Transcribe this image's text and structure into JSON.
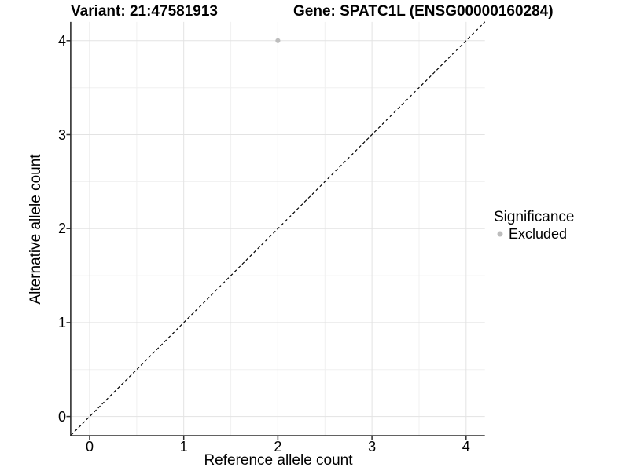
{
  "titles": {
    "variant": "Variant: 21:47581913",
    "gene": "Gene: SPATC1L (ENSG00000160284)"
  },
  "chart_data": {
    "type": "scatter",
    "title_left": "Variant: 21:47581913",
    "title_right": "Gene: SPATC1L (ENSG00000160284)",
    "xlabel": "Reference allele count",
    "ylabel": "Alternative allele count",
    "x_ticks": [
      "0",
      "1",
      "2",
      "3",
      "4"
    ],
    "y_ticks": [
      "0",
      "1",
      "2",
      "3",
      "4"
    ],
    "xlim": [
      -0.2,
      4.2
    ],
    "ylim": [
      -0.2,
      4.2
    ],
    "grid": "major and minor gridlines on, white background",
    "reference_line": {
      "type": "identity y=x",
      "style": "dashed",
      "color": "#000000",
      "from": [
        -0.2,
        -0.2
      ],
      "to": [
        4.2,
        4.2
      ]
    },
    "series": [
      {
        "name": "Excluded",
        "color": "#bdbdbd",
        "points": [
          {
            "x": 2,
            "y": 4
          }
        ]
      }
    ],
    "legend": {
      "title": "Significance",
      "position": "right",
      "items": [
        {
          "label": "Excluded",
          "color": "#bdbdbd"
        }
      ]
    }
  },
  "colors": {
    "background": "#ffffff",
    "grid_major": "#e3e3e3",
    "grid_minor": "#f0f0f0",
    "axis_line": "#2e2e2e",
    "point": "#bdbdbd",
    "text": "#000000"
  }
}
